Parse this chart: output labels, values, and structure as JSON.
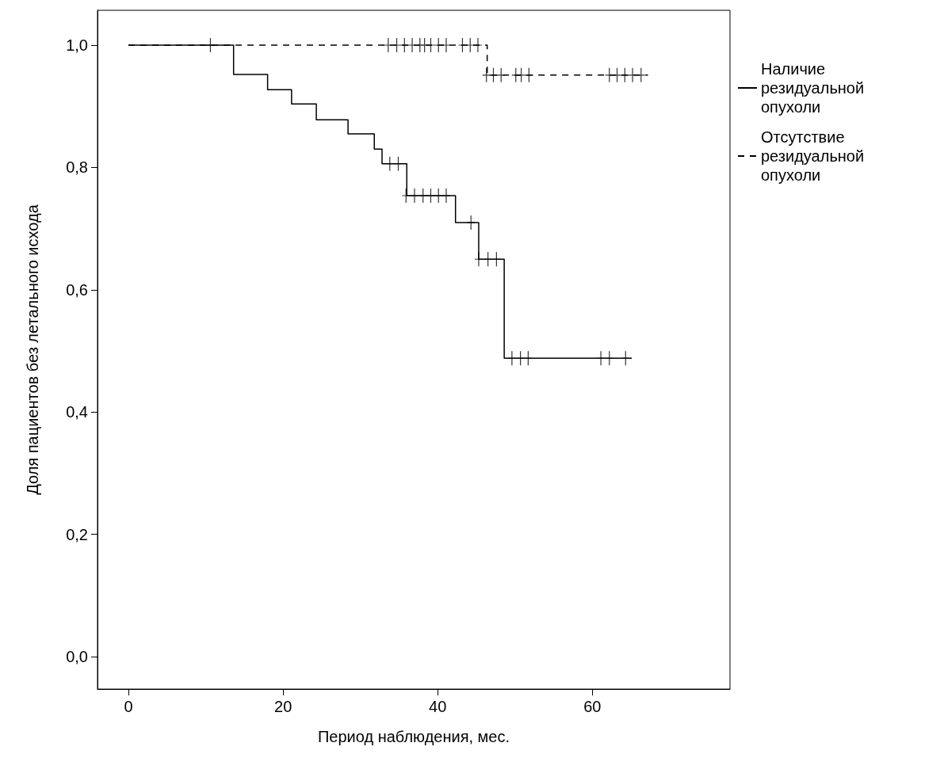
{
  "chart_data": {
    "type": "step",
    "xlabel": "Период наблюдения, мес.",
    "ylabel": "Доля пациентов без летального исхода",
    "xlim": [
      -4,
      77.8
    ],
    "ylim": [
      -0.053,
      1.057
    ],
    "xticks": [
      0,
      20,
      40,
      60
    ],
    "yticks": [
      {
        "value": 0,
        "label": "0,0"
      },
      {
        "value": 0.2,
        "label": "0,2"
      },
      {
        "value": 0.4,
        "label": "0,4"
      },
      {
        "value": 0.6,
        "label": "0,6"
      },
      {
        "value": 0.8,
        "label": "0,8"
      },
      {
        "value": 1,
        "label": "1,0"
      }
    ],
    "grid": false,
    "legend": "right",
    "marker": "none",
    "series": [
      {
        "name": "Наличие резидуальной опухоли",
        "color": "#000000",
        "line_style": "solid",
        "x": [
          0,
          13.6,
          18.0,
          21.1,
          24.3,
          28.4,
          31.8,
          32.8,
          36.0,
          42.3,
          45.3,
          48.6,
          65.1
        ],
        "values": [
          1,
          0.952,
          0.927,
          0.904,
          0.878,
          0.855,
          0.83,
          0.806,
          0.754,
          0.71,
          0.65,
          0.488,
          0.488
        ]
      },
      {
        "name": "Отсутствие резидуальной опухоли",
        "color": "#000000",
        "line_style": "dashed",
        "x": [
          0,
          46.4,
          67.2
        ],
        "values": [
          1,
          0.951,
          0.951
        ]
      },
      {
        "type": "scatter",
        "marker": "cross",
        "color": "#000000",
        "x": [
          33.8,
          34.9,
          35.9,
          37.0,
          38.1,
          39.1,
          40.1,
          41.1,
          44.3,
          45.3,
          46.5,
          47.6,
          49.6,
          50.7,
          51.7,
          61.1,
          62.2,
          64.3
        ],
        "values": [
          0.806,
          0.806,
          0.754,
          0.754,
          0.754,
          0.754,
          0.754,
          0.754,
          0.71,
          0.65,
          0.65,
          0.65,
          0.488,
          0.488,
          0.488,
          0.488,
          0.488,
          0.488
        ]
      },
      {
        "type": "scatter",
        "marker": "cross",
        "color": "#000000",
        "x": [
          10.6,
          33.6,
          34.7,
          35.7,
          36.7,
          37.7,
          38.3,
          39.1,
          40.1,
          41.1,
          43.2,
          44.2,
          45.2,
          46.3,
          47.2,
          48.2,
          50.1,
          50.8,
          51.8,
          62.2,
          63.2,
          64.2,
          65.2,
          66.3
        ],
        "values": [
          1,
          1,
          1,
          1,
          1,
          1,
          1,
          1,
          1,
          1,
          1,
          1,
          1,
          0.951,
          0.951,
          0.951,
          0.951,
          0.951,
          0.951,
          0.951,
          0.951,
          0.951,
          0.951,
          0.951
        ]
      }
    ]
  }
}
